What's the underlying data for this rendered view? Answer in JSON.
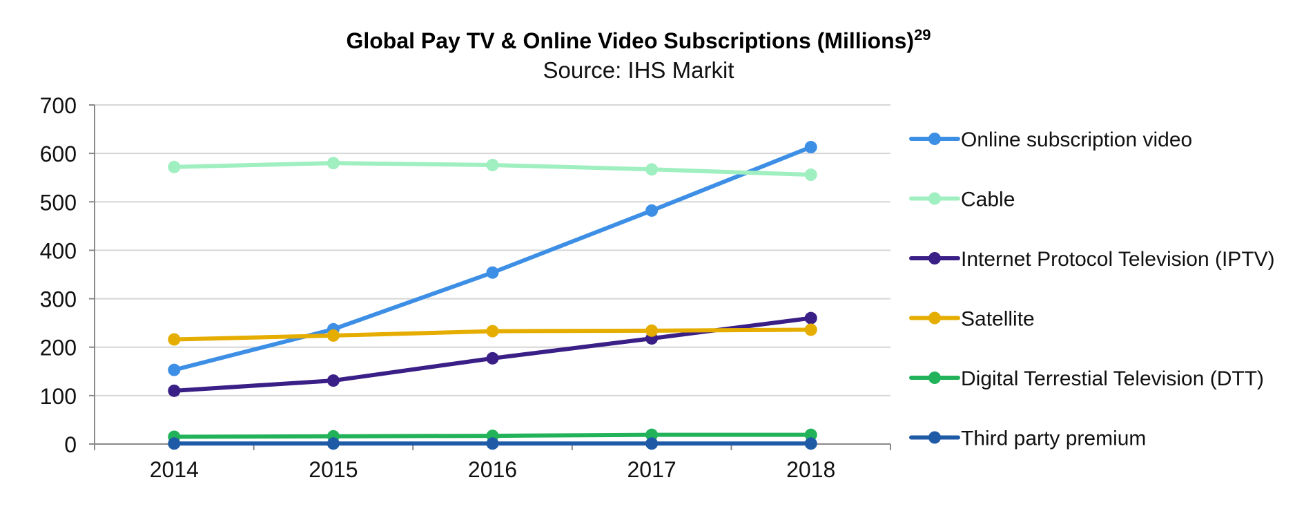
{
  "chart_data": {
    "type": "line",
    "title": "Global Pay TV & Online Video Subscriptions (Millions)",
    "title_superscript": "29",
    "subtitle": "Source: IHS Markit",
    "xlabel": "",
    "ylabel": "",
    "x": [
      "2014",
      "2015",
      "2016",
      "2017",
      "2018"
    ],
    "ylim": [
      0,
      700
    ],
    "yticks": [
      "0",
      "100",
      "200",
      "300",
      "400",
      "500",
      "600",
      "700"
    ],
    "grid": true,
    "legend_position": "right",
    "series": [
      {
        "name": "Online subscription video",
        "color": "#3d8fe6",
        "values": [
          153,
          237,
          354,
          482,
          613
        ]
      },
      {
        "name": "Cable",
        "color": "#9fefc0",
        "values": [
          572,
          580,
          576,
          567,
          556
        ]
      },
      {
        "name": "Internet Protocol Television (IPTV)",
        "color": "#3a1f87",
        "values": [
          110,
          131,
          177,
          218,
          260
        ]
      },
      {
        "name": "Satellite",
        "color": "#e5ad00",
        "values": [
          216,
          224,
          233,
          234,
          236
        ]
      },
      {
        "name": "Digital Terrestial Television (DTT)",
        "color": "#22b35a",
        "values": [
          15,
          16,
          17,
          19,
          19
        ]
      },
      {
        "name": "Third party premium",
        "color": "#1f5aa6",
        "values": [
          1,
          1,
          1,
          1,
          1
        ]
      }
    ]
  }
}
